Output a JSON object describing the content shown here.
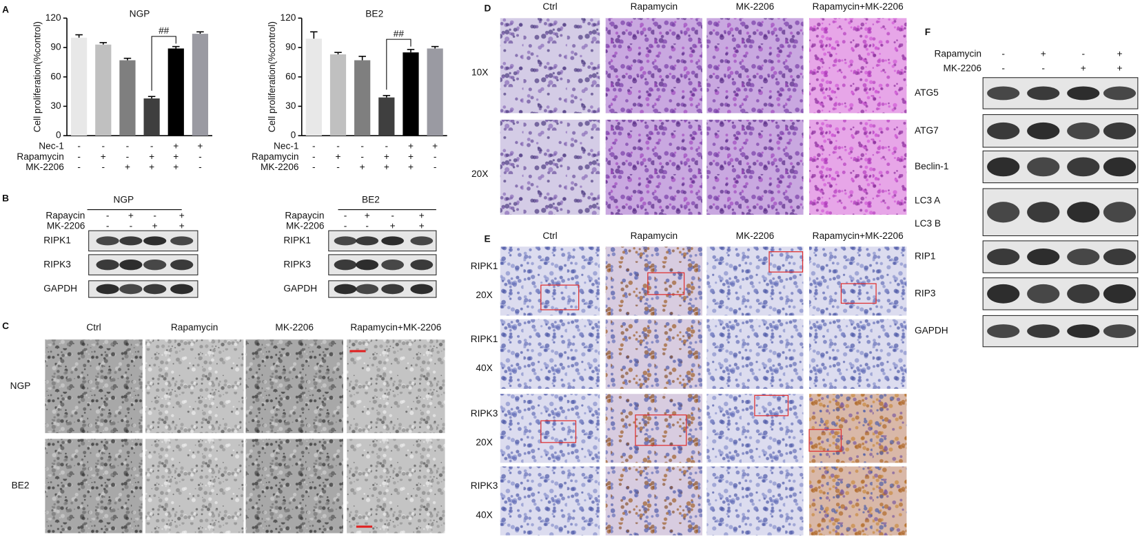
{
  "chart_data": [
    {
      "type": "bar",
      "title": "NGP",
      "ylabel": "Cell proliferation(%control)",
      "values": [
        100,
        93,
        77,
        38,
        89,
        104
      ],
      "errors": [
        3,
        2,
        2,
        2,
        2,
        2
      ],
      "colors": [
        "#e8e8e8",
        "#c0c0c0",
        "#7f7f7f",
        "#3f3f3f",
        "#000000",
        "#9a9aa2"
      ],
      "ylim": [
        0,
        120
      ],
      "yticks": [
        0,
        30,
        60,
        90,
        120
      ],
      "annotation": "##",
      "treatments": [
        {
          "name": "Nec-1",
          "signs": [
            "-",
            "-",
            "-",
            "-",
            "+",
            "+"
          ]
        },
        {
          "name": "Rapamycin",
          "signs": [
            "-",
            "+",
            "-",
            "+",
            "+",
            "-"
          ]
        },
        {
          "name": "MK-2206",
          "signs": [
            "-",
            "-",
            "+",
            "+",
            "+",
            "-"
          ]
        }
      ]
    },
    {
      "type": "bar",
      "title": "BE2",
      "ylabel": "Cell proliferation(%control)",
      "values": [
        99,
        83,
        77,
        39,
        85,
        89
      ],
      "errors": [
        7,
        2,
        4,
        2,
        3,
        2
      ],
      "colors": [
        "#e8e8e8",
        "#c0c0c0",
        "#7f7f7f",
        "#3f3f3f",
        "#000000",
        "#9a9aa2"
      ],
      "ylim": [
        0,
        120
      ],
      "yticks": [
        0,
        30,
        60,
        90,
        120
      ],
      "annotation": "##",
      "treatments": [
        {
          "name": "Nec-1",
          "signs": [
            "-",
            "-",
            "-",
            "-",
            "+",
            "+"
          ]
        },
        {
          "name": "Rapamycin",
          "signs": [
            "-",
            "+",
            "-",
            "+",
            "+",
            "-"
          ]
        },
        {
          "name": "MK-2206",
          "signs": [
            "-",
            "-",
            "+",
            "+",
            "+",
            "-"
          ]
        }
      ]
    }
  ],
  "panel_labels": [
    "A",
    "B",
    "C",
    "D",
    "E",
    "F"
  ],
  "blots_b": [
    {
      "title": "NGP",
      "treatments": [
        {
          "name": "Rapaycin",
          "signs": [
            "-",
            "+",
            "-",
            "+"
          ]
        },
        {
          "name": "MK-2206",
          "signs": [
            "-",
            "-",
            "+",
            "+"
          ]
        }
      ],
      "bands": [
        "RIPK1",
        "RIPK3",
        "GAPDH"
      ]
    },
    {
      "title": "BE2",
      "treatments": [
        {
          "name": "Rapaycin",
          "signs": [
            "-",
            "+",
            "-",
            "+"
          ]
        },
        {
          "name": "MK-2206",
          "signs": [
            "-",
            "-",
            "+",
            "+"
          ]
        }
      ],
      "bands": [
        "RIPK1",
        "RIPK3",
        "GAPDH"
      ]
    }
  ],
  "tem_c": {
    "columns": [
      "Ctrl",
      "Rapamycin",
      "MK-2206",
      "Rapamycin+MK-2206"
    ],
    "rows": [
      "NGP",
      "BE2"
    ]
  },
  "he_d": {
    "columns": [
      "Ctrl",
      "Rapamycin",
      "MK-2206",
      "Rapamycin+MK-2206"
    ],
    "rows": [
      "10X",
      "20X"
    ]
  },
  "ihc_e": {
    "columns": [
      "Ctrl",
      "Rapamycin",
      "MK-2206",
      "Rapamycin+MK-2206"
    ],
    "rows": [
      [
        "RIPK1",
        "20X"
      ],
      [
        "RIPK1",
        "40X"
      ],
      [
        "RIPK3",
        "20X"
      ],
      [
        "RIPK3",
        "40X"
      ]
    ]
  },
  "blot_f": {
    "treatments": [
      {
        "name": "Rapamycin",
        "signs": [
          "-",
          "+",
          "-",
          "+"
        ]
      },
      {
        "name": "MK-2206",
        "signs": [
          "-",
          "-",
          "+",
          "+"
        ]
      }
    ],
    "bands": [
      [
        "ATG5"
      ],
      [
        "ATG7"
      ],
      [
        "Beclin-1"
      ],
      [
        "LC3 A",
        "LC3 B"
      ],
      [
        "RIP1"
      ],
      [
        "RIP3"
      ],
      [
        "GAPDH"
      ]
    ]
  }
}
